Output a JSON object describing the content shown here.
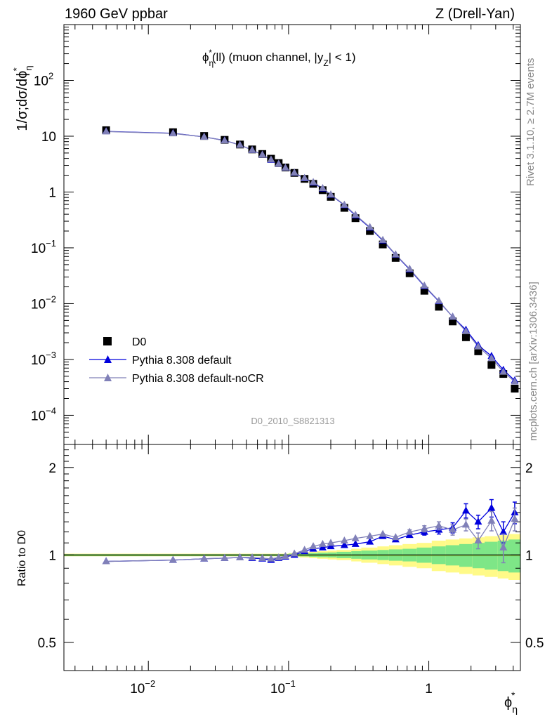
{
  "header": {
    "left": "1960 GeV ppbar",
    "right": "Z (Drell-Yan)"
  },
  "plot_title": "ϕη*(ll) (muon channel, |yZ| < 1)",
  "side_text": {
    "rivet": "Rivet 3.1.10, ≥ 2.7M events",
    "mcplots": "mcplots.cern.ch [arXiv:1306.3436]"
  },
  "watermark": "D0_2010_S8821313",
  "ylabel_main": "1/σ;dσ/dϕη*",
  "ylabel_ratio": "Ratio to D0",
  "xlabel": "ϕη*",
  "legend": [
    "D0",
    "Pythia 8.308 default",
    "Pythia 8.308 default-noCR"
  ],
  "colors": {
    "data": "#000000",
    "default": "#0000dd",
    "nocr": "#8080b8",
    "band_inner": "#7ee687",
    "band_outer": "#fffa88",
    "ref_line": "#88cc44"
  },
  "chart_data": [
    {
      "type": "scatter",
      "panel": "main",
      "xscale": "log",
      "yscale": "log",
      "xlim": [
        0.0025,
        4.5
      ],
      "ylim": [
        3e-05,
        1000
      ],
      "x_ticks": [
        "10^-2",
        "10^-1",
        "1"
      ],
      "y_ticks": [
        "10^-4",
        "10^-3",
        "10^-2",
        "10^-1",
        "1",
        "10",
        "10^2"
      ],
      "x": [
        0.005,
        0.015,
        0.025,
        0.035,
        0.045,
        0.055,
        0.065,
        0.075,
        0.085,
        0.095,
        0.11,
        0.13,
        0.15,
        0.175,
        0.2,
        0.25,
        0.3,
        0.38,
        0.47,
        0.58,
        0.73,
        0.93,
        1.18,
        1.48,
        1.84,
        2.25,
        2.8,
        3.4,
        4.1
      ],
      "series": [
        {
          "name": "D0",
          "marker": "square",
          "values": [
            12.8,
            11.8,
            10.1,
            8.6,
            7.1,
            5.8,
            4.8,
            3.95,
            3.3,
            2.75,
            2.2,
            1.72,
            1.4,
            1.08,
            0.82,
            0.52,
            0.34,
            0.2,
            0.115,
            0.066,
            0.035,
            0.017,
            0.0088,
            0.0048,
            0.0025,
            0.0014,
            0.0008,
            0.00055,
            0.0003
          ]
        },
        {
          "name": "Pythia 8.308 default",
          "marker": "triangle",
          "values": [
            12.2,
            11.3,
            9.7,
            8.4,
            6.95,
            5.65,
            4.65,
            3.75,
            3.2,
            2.7,
            2.2,
            1.76,
            1.47,
            1.15,
            0.89,
            0.58,
            0.38,
            0.23,
            0.135,
            0.075,
            0.041,
            0.0205,
            0.011,
            0.0058,
            0.0034,
            0.0018,
            0.00115,
            0.00065,
            0.00042
          ]
        },
        {
          "name": "Pythia 8.308 default-noCR",
          "marker": "triangle",
          "values": [
            12.1,
            11.2,
            9.7,
            8.35,
            6.95,
            5.65,
            4.65,
            3.8,
            3.2,
            2.7,
            2.22,
            1.78,
            1.5,
            1.17,
            0.9,
            0.59,
            0.39,
            0.235,
            0.138,
            0.076,
            0.042,
            0.021,
            0.0112,
            0.0058,
            0.0032,
            0.0017,
            0.00105,
            0.0006,
            0.0004
          ]
        }
      ]
    },
    {
      "type": "line",
      "panel": "ratio",
      "xscale": "log",
      "yscale": "log",
      "xlim": [
        0.0025,
        4.5
      ],
      "ylim": [
        0.4,
        2.4
      ],
      "x_ticks": [
        "10^-2",
        "10^-1",
        "1"
      ],
      "y_ticks": [
        "0.5",
        "1",
        "2"
      ],
      "x": [
        0.005,
        0.015,
        0.025,
        0.035,
        0.045,
        0.055,
        0.065,
        0.075,
        0.085,
        0.095,
        0.11,
        0.13,
        0.15,
        0.175,
        0.2,
        0.25,
        0.3,
        0.38,
        0.47,
        0.58,
        0.73,
        0.93,
        1.18,
        1.48,
        1.84,
        2.25,
        2.8,
        3.4,
        4.1
      ],
      "series": [
        {
          "name": "Pythia 8.308 default",
          "values": [
            0.95,
            0.96,
            0.97,
            0.975,
            0.98,
            0.975,
            0.97,
            0.96,
            0.975,
            0.985,
            1.0,
            1.03,
            1.05,
            1.06,
            1.07,
            1.08,
            1.09,
            1.11,
            1.16,
            1.13,
            1.17,
            1.2,
            1.22,
            1.24,
            1.42,
            1.3,
            1.45,
            1.2,
            1.4
          ],
          "errors": [
            0,
            0,
            0,
            0,
            0,
            0,
            0,
            0,
            0,
            0,
            0,
            0,
            0,
            0,
            0,
            0,
            0,
            0,
            0,
            0,
            0.02,
            0.03,
            0.04,
            0.05,
            0.08,
            0.07,
            0.1,
            0.1,
            0.12
          ]
        },
        {
          "name": "Pythia 8.308 default-noCR",
          "values": [
            0.95,
            0.96,
            0.97,
            0.975,
            0.98,
            0.98,
            0.975,
            0.97,
            0.98,
            0.99,
            1.01,
            1.04,
            1.07,
            1.09,
            1.1,
            1.12,
            1.14,
            1.16,
            1.18,
            1.15,
            1.2,
            1.23,
            1.26,
            1.22,
            1.27,
            1.12,
            1.31,
            1.06,
            1.33
          ],
          "errors": [
            0,
            0,
            0,
            0,
            0,
            0,
            0,
            0,
            0,
            0,
            0,
            0,
            0,
            0,
            0,
            0,
            0,
            0,
            0,
            0,
            0.02,
            0.03,
            0.04,
            0.05,
            0.06,
            0.07,
            0.1,
            0.12,
            0.12
          ]
        }
      ],
      "bands": {
        "bin_edges": [
          0.0025,
          0.01,
          0.02,
          0.03,
          0.04,
          0.05,
          0.06,
          0.07,
          0.08,
          0.09,
          0.1,
          0.12,
          0.14,
          0.16,
          0.19,
          0.22,
          0.28,
          0.33,
          0.43,
          0.52,
          0.65,
          0.82,
          1.05,
          1.32,
          1.65,
          2.05,
          2.5,
          3.1,
          3.7,
          4.5
        ],
        "inner": [
          0.006,
          0.006,
          0.006,
          0.006,
          0.006,
          0.006,
          0.006,
          0.006,
          0.006,
          0.006,
          0.01,
          0.012,
          0.015,
          0.018,
          0.02,
          0.025,
          0.03,
          0.035,
          0.04,
          0.045,
          0.05,
          0.06,
          0.07,
          0.08,
          0.09,
          0.1,
          0.11,
          0.12,
          0.13
        ],
        "outer": [
          0.01,
          0.01,
          0.01,
          0.01,
          0.01,
          0.01,
          0.01,
          0.01,
          0.01,
          0.01,
          0.015,
          0.02,
          0.025,
          0.03,
          0.035,
          0.04,
          0.05,
          0.06,
          0.07,
          0.08,
          0.09,
          0.1,
          0.12,
          0.13,
          0.14,
          0.15,
          0.16,
          0.17,
          0.18
        ]
      }
    }
  ]
}
